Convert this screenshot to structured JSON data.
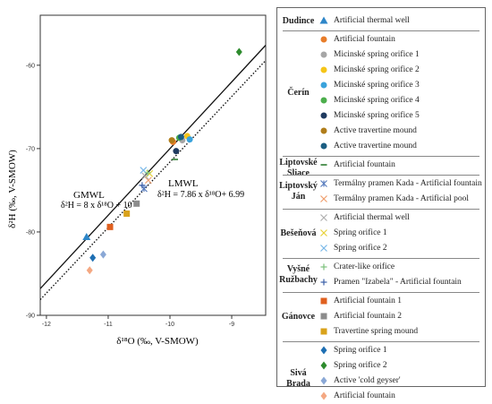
{
  "chart_data": {
    "type": "scatter",
    "xlabel": "δ¹⁸O (‰, V-SMOW)",
    "ylabel": "δ²H (‰, V-SMOW)",
    "xlim": [
      -12.1,
      -8.45
    ],
    "ylim": [
      -90,
      -54
    ],
    "xticks": [
      -12,
      -11,
      -10,
      -9
    ],
    "yticks": [
      -90,
      -80,
      -70,
      -60
    ],
    "xtick_labels": [
      "-12",
      "-11",
      "-10",
      "-9"
    ],
    "ytick_labels": [
      "-90",
      "-80",
      "-70",
      "-60"
    ],
    "grid": false,
    "legend_position": "right",
    "lines": [
      {
        "name": "GMWL",
        "equation": "δ²H = 8 x δ¹⁸O + 10",
        "slope": 8,
        "intercept": 10,
        "style": "solid"
      },
      {
        "name": "LMWL",
        "equation": "δ²H = 7.86 x δ¹⁸O+ 6.99",
        "slope": 7.86,
        "intercept": 6.99,
        "style": "dotted"
      }
    ],
    "series": [
      {
        "name": "Artificial thermal well",
        "group": "Dudince",
        "marker": "triangle",
        "color": "#2e86c8",
        "points": [
          [
            -11.35,
            -80.6
          ]
        ]
      },
      {
        "name": "Artificial fountain",
        "group": "Čerín",
        "marker": "circle",
        "color": "#e87d2a",
        "points": [
          [
            -9.95,
            -69.2
          ]
        ]
      },
      {
        "name": "Micinské spring orifice 1",
        "group": "Čerín",
        "marker": "circle",
        "color": "#a6a6a6",
        "points": [
          [
            -9.8,
            -69.0
          ]
        ]
      },
      {
        "name": "Micinské spring orifice 2",
        "group": "Čerín",
        "marker": "circle",
        "color": "#f5c518",
        "points": [
          [
            -9.72,
            -68.5
          ]
        ]
      },
      {
        "name": "Micinské spring orifice 3",
        "group": "Čerín",
        "marker": "circle",
        "color": "#3aa3dc",
        "points": [
          [
            -9.68,
            -68.9
          ]
        ]
      },
      {
        "name": "Micinské spring orifice 4",
        "group": "Čerín",
        "marker": "circle",
        "color": "#4cae4c",
        "points": [
          [
            -9.85,
            -68.7
          ]
        ]
      },
      {
        "name": "Micinské spring orifice 5",
        "group": "Čerín",
        "marker": "circle",
        "color": "#1f3a5f",
        "points": [
          [
            -9.9,
            -70.3
          ]
        ]
      },
      {
        "name": "Active  travertine mound",
        "group": "Čerín",
        "marker": "circle",
        "color": "#b07d1a",
        "points": [
          [
            -9.97,
            -69.0
          ]
        ]
      },
      {
        "name": "Active  travertine mound",
        "group": "Čerín",
        "marker": "circle",
        "color": "#1b5e82",
        "points": [
          [
            -9.82,
            -68.6
          ]
        ]
      },
      {
        "name": "Artificial fountain",
        "group": "Liptovské Sliace",
        "marker": "dash",
        "color": "#2e7d32",
        "points": [
          [
            -9.92,
            -71.3
          ]
        ]
      },
      {
        "name": "Termálny pramen Kada - Artificial fountain",
        "group": "Liptovský Ján",
        "marker": "asterisk",
        "color": "#5b7fbf",
        "points": [
          [
            -10.42,
            -74.8
          ]
        ]
      },
      {
        "name": "Termálny pramen Kada - Artificial pool",
        "group": "Liptovský Ján",
        "marker": "x",
        "color": "#f0a070",
        "points": [
          [
            -10.35,
            -73.8
          ]
        ]
      },
      {
        "name": "Artificial thermal well",
        "group": "Bešeňová",
        "marker": "x",
        "color": "#b0b0b0",
        "points": [
          [
            -10.4,
            -73.3
          ]
        ]
      },
      {
        "name": "Spring orifice 1",
        "group": "Bešeňová",
        "marker": "x",
        "color": "#e8d23a",
        "points": [
          [
            -10.33,
            -73.0
          ]
        ]
      },
      {
        "name": "Spring orifice 2",
        "group": "Bešeňová",
        "marker": "x",
        "color": "#7ab8e8",
        "points": [
          [
            -10.43,
            -72.6
          ]
        ]
      },
      {
        "name": "Crater-like orifice",
        "group": "Vyšné Ružbachy",
        "marker": "plus",
        "color": "#7ac07a",
        "points": [
          [
            -10.36,
            -72.9
          ]
        ]
      },
      {
        "name": "Pramen \"Izabela\" - Artificial fountain",
        "group": "Vyšné Ružbachy",
        "marker": "plus",
        "color": "#3a5fa8",
        "points": [
          [
            -10.45,
            -74.4
          ]
        ]
      },
      {
        "name": "Artificial fountain 1",
        "group": "Gánovce",
        "marker": "square",
        "color": "#e0601f",
        "points": [
          [
            -10.97,
            -79.4
          ]
        ]
      },
      {
        "name": "Artificial fountain 2",
        "group": "Gánovce",
        "marker": "square",
        "color": "#8c8c8c",
        "points": [
          [
            -10.54,
            -76.6
          ]
        ]
      },
      {
        "name": "Travertine spring mound",
        "group": "Gánovce",
        "marker": "square",
        "color": "#d9a21b",
        "points": [
          [
            -10.7,
            -77.8
          ]
        ]
      },
      {
        "name": "Spring orifice 1",
        "group": "Sivá Brada",
        "marker": "diamond",
        "color": "#1e6fb3",
        "points": [
          [
            -11.25,
            -83.1
          ]
        ]
      },
      {
        "name": "Spring orifice 2",
        "group": "Sivá Brada",
        "marker": "diamond",
        "color": "#2e8b2e",
        "points": [
          [
            -8.88,
            -58.4
          ]
        ]
      },
      {
        "name": "Active 'cold geyser'",
        "group": "Sivá Brada",
        "marker": "diamond",
        "color": "#8aa8d6",
        "points": [
          [
            -11.08,
            -82.7
          ]
        ]
      },
      {
        "name": "Artificial fountain",
        "group": "Sivá Brada",
        "marker": "diamond",
        "color": "#f4a882",
        "points": [
          [
            -11.3,
            -84.6
          ]
        ]
      }
    ]
  },
  "annotations": {
    "gmwl_title": "GMWL",
    "gmwl_equation": "δ²H = 8 x δ¹⁸O + 10",
    "lmwl_title": "LMWL",
    "lmwl_equation": "δ²H = 7.86 x δ¹⁸O+ 6.99"
  },
  "legend": {
    "groups": [
      {
        "location": "Dudince",
        "items": [
          {
            "label": "Artificial thermal well",
            "marker": "triangle",
            "color": "#2e86c8"
          }
        ]
      },
      {
        "location": "Čerín",
        "items": [
          {
            "label": "Artificial fountain",
            "marker": "circle",
            "color": "#e87d2a"
          },
          {
            "label": "Micinské spring orifice 1",
            "marker": "circle",
            "color": "#a6a6a6"
          },
          {
            "label": "Micinské spring orifice 2",
            "marker": "circle",
            "color": "#f5c518"
          },
          {
            "label": "Micinské spring orifice 3",
            "marker": "circle",
            "color": "#3aa3dc"
          },
          {
            "label": "Micinské spring orifice 4",
            "marker": "circle",
            "color": "#4cae4c"
          },
          {
            "label": "Micinské spring orifice 5",
            "marker": "circle",
            "color": "#1f3a5f"
          },
          {
            "label": "Active  travertine mound",
            "marker": "circle",
            "color": "#b07d1a"
          },
          {
            "label": "Active  travertine mound",
            "marker": "circle",
            "color": "#1b5e82"
          }
        ]
      },
      {
        "location": "Liptovské Sliace",
        "items": [
          {
            "label": "Artificial fountain",
            "marker": "dash",
            "color": "#2e7d32"
          }
        ]
      },
      {
        "location": "Liptovský Ján",
        "items": [
          {
            "label": "Termálny pramen Kada - Artificial fountain",
            "marker": "asterisk",
            "color": "#5b7fbf"
          },
          {
            "label": "Termálny pramen Kada - Artificial pool",
            "marker": "x",
            "color": "#f0a070"
          }
        ]
      },
      {
        "location": "Bešeňová",
        "items": [
          {
            "label": "Artificial thermal well",
            "marker": "x",
            "color": "#b0b0b0"
          },
          {
            "label": "Spring orifice 1",
            "marker": "x",
            "color": "#e8d23a"
          },
          {
            "label": "Spring orifice 2",
            "marker": "x",
            "color": "#7ab8e8"
          }
        ]
      },
      {
        "location": "Vyšné Ružbachy",
        "items": [
          {
            "label": "Crater-like orifice",
            "marker": "plus",
            "color": "#7ac07a"
          },
          {
            "label": "Pramen \"Izabela\" - Artificial fountain",
            "marker": "plus",
            "color": "#3a5fa8"
          }
        ]
      },
      {
        "location": "Gánovce",
        "items": [
          {
            "label": "Artificial fountain 1",
            "marker": "square",
            "color": "#e0601f"
          },
          {
            "label": "Artificial fountain 2",
            "marker": "square",
            "color": "#8c8c8c"
          },
          {
            "label": "Travertine spring mound",
            "marker": "square",
            "color": "#d9a21b"
          }
        ]
      },
      {
        "location": "Sivá Brada",
        "items": [
          {
            "label": "Spring orifice 1",
            "marker": "diamond",
            "color": "#1e6fb3"
          },
          {
            "label": "Spring orifice 2",
            "marker": "diamond",
            "color": "#2e8b2e"
          },
          {
            "label": "Active 'cold geyser'",
            "marker": "diamond",
            "color": "#8aa8d6"
          },
          {
            "label": "Artificial fountain",
            "marker": "diamond",
            "color": "#f4a882"
          }
        ]
      }
    ]
  }
}
